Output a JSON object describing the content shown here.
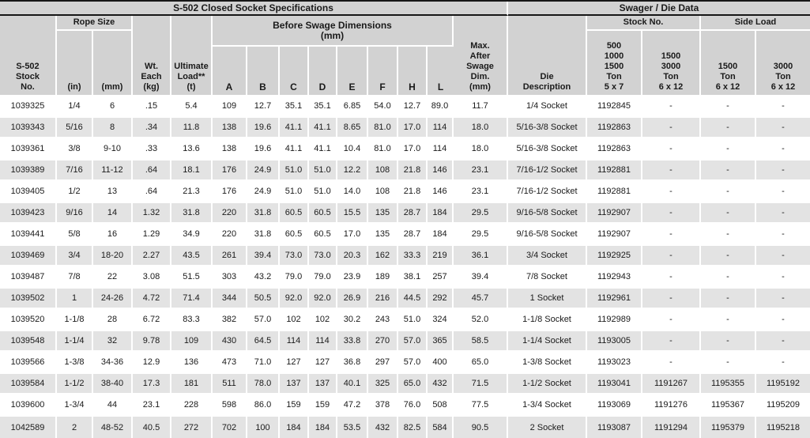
{
  "table": {
    "title_left": "S-502 Closed Socket Specifications",
    "title_right": "Swager / Die Data",
    "groups": {
      "rope_size": "Rope Size",
      "before_swage": "Before Swage Dimensions\n(mm)",
      "stock_no": "Stock No.",
      "side_load": "Side Load"
    },
    "columns": {
      "stock_no": "S-502\nStock\nNo.",
      "rope_in": "(in)",
      "rope_mm": "(mm)",
      "wt_each": "Wt.\nEach\n(kg)",
      "ultimate_load": "Ultimate\nLoad**\n(t)",
      "dims": [
        "A",
        "B",
        "C",
        "D",
        "E",
        "F",
        "H",
        "L"
      ],
      "max_after_swage": "Max.\nAfter\nSwage\nDim.\n(mm)",
      "die_description": "Die\nDescription",
      "swager_stock_1": "500\n1000\n1500\nTon\n5 x 7",
      "swager_stock_2": "1500\n3000\nTon\n6 x 12",
      "side_load_1": "1500\nTon\n6 x 12",
      "side_load_2": "3000\nTon\n6 x 12"
    },
    "rows": [
      [
        "1039325",
        "1/4",
        "6",
        ".15",
        "5.4",
        "109",
        "12.7",
        "35.1",
        "35.1",
        "6.85",
        "54.0",
        "12.7",
        "89.0",
        "11.7",
        "1/4 Socket",
        "1192845",
        "-",
        "-",
        "-"
      ],
      [
        "1039343",
        "5/16",
        "8",
        ".34",
        "11.8",
        "138",
        "19.6",
        "41.1",
        "41.1",
        "8.65",
        "81.0",
        "17.0",
        "114",
        "18.0",
        "5/16-3/8 Socket",
        "1192863",
        "-",
        "-",
        "-"
      ],
      [
        "1039361",
        "3/8",
        "9-10",
        ".33",
        "13.6",
        "138",
        "19.6",
        "41.1",
        "41.1",
        "10.4",
        "81.0",
        "17.0",
        "114",
        "18.0",
        "5/16-3/8 Socket",
        "1192863",
        "-",
        "-",
        "-"
      ],
      [
        "1039389",
        "7/16",
        "11-12",
        ".64",
        "18.1",
        "176",
        "24.9",
        "51.0",
        "51.0",
        "12.2",
        "108",
        "21.8",
        "146",
        "23.1",
        "7/16-1/2 Socket",
        "1192881",
        "-",
        "-",
        "-"
      ],
      [
        "1039405",
        "1/2",
        "13",
        ".64",
        "21.3",
        "176",
        "24.9",
        "51.0",
        "51.0",
        "14.0",
        "108",
        "21.8",
        "146",
        "23.1",
        "7/16-1/2 Socket",
        "1192881",
        "-",
        "-",
        "-"
      ],
      [
        "1039423",
        "9/16",
        "14",
        "1.32",
        "31.8",
        "220",
        "31.8",
        "60.5",
        "60.5",
        "15.5",
        "135",
        "28.7",
        "184",
        "29.5",
        "9/16-5/8 Socket",
        "1192907",
        "-",
        "-",
        "-"
      ],
      [
        "1039441",
        "5/8",
        "16",
        "1.29",
        "34.9",
        "220",
        "31.8",
        "60.5",
        "60.5",
        "17.0",
        "135",
        "28.7",
        "184",
        "29.5",
        "9/16-5/8 Socket",
        "1192907",
        "-",
        "-",
        "-"
      ],
      [
        "1039469",
        "3/4",
        "18-20",
        "2.27",
        "43.5",
        "261",
        "39.4",
        "73.0",
        "73.0",
        "20.3",
        "162",
        "33.3",
        "219",
        "36.1",
        "3/4 Socket",
        "1192925",
        "-",
        "-",
        "-"
      ],
      [
        "1039487",
        "7/8",
        "22",
        "3.08",
        "51.5",
        "303",
        "43.2",
        "79.0",
        "79.0",
        "23.9",
        "189",
        "38.1",
        "257",
        "39.4",
        "7/8 Socket",
        "1192943",
        "-",
        "-",
        "-"
      ],
      [
        "1039502",
        "1",
        "24-26",
        "4.72",
        "71.4",
        "344",
        "50.5",
        "92.0",
        "92.0",
        "26.9",
        "216",
        "44.5",
        "292",
        "45.7",
        "1 Socket",
        "1192961",
        "-",
        "-",
        "-"
      ],
      [
        "1039520",
        "1-1/8",
        "28",
        "6.72",
        "83.3",
        "382",
        "57.0",
        "102",
        "102",
        "30.2",
        "243",
        "51.0",
        "324",
        "52.0",
        "1-1/8 Socket",
        "1192989",
        "-",
        "-",
        "-"
      ],
      [
        "1039548",
        "1-1/4",
        "32",
        "9.78",
        "109",
        "430",
        "64.5",
        "114",
        "114",
        "33.8",
        "270",
        "57.0",
        "365",
        "58.5",
        "1-1/4 Socket",
        "1193005",
        "-",
        "-",
        "-"
      ],
      [
        "1039566",
        "1-3/8",
        "34-36",
        "12.9",
        "136",
        "473",
        "71.0",
        "127",
        "127",
        "36.8",
        "297",
        "57.0",
        "400",
        "65.0",
        "1-3/8 Socket",
        "1193023",
        "-",
        "-",
        "-"
      ],
      [
        "1039584",
        "1-1/2",
        "38-40",
        "17.3",
        "181",
        "511",
        "78.0",
        "137",
        "137",
        "40.1",
        "325",
        "65.0",
        "432",
        "71.5",
        "1-1/2 Socket",
        "1193041",
        "1191267",
        "1195355",
        "1195192"
      ],
      [
        "1039600",
        "1-3/4",
        "44",
        "23.1",
        "228",
        "598",
        "86.0",
        "159",
        "159",
        "47.2",
        "378",
        "76.0",
        "508",
        "77.5",
        "1-3/4 Socket",
        "1193069",
        "1191276",
        "1195367",
        "1195209"
      ],
      [
        "1042589",
        "2",
        "48-52",
        "40.5",
        "272",
        "702",
        "100",
        "184",
        "184",
        "53.5",
        "432",
        "82.5",
        "584",
        "90.5",
        "2 Socket",
        "1193087",
        "1191294",
        "1195379",
        "1195218"
      ]
    ]
  },
  "colors": {
    "header_bg": "#d2d2d2",
    "row_bg": "#ffffff",
    "row_alt_bg": "#e3e3e3",
    "grid_line": "#ffffff",
    "dark_line": "#161616",
    "text": "#1a1a1a"
  }
}
